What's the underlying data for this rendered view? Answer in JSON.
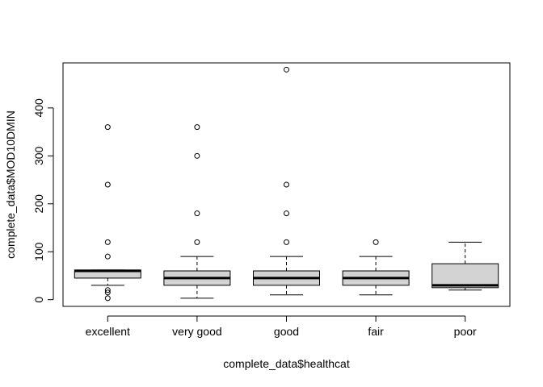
{
  "chart_data": {
    "type": "boxplot",
    "xlabel": "complete_data$healthcat",
    "ylabel": "complete_data$MOD10DMIN",
    "ylim": [
      -14,
      494
    ],
    "y_ticks": [
      0,
      100,
      200,
      300,
      400
    ],
    "x_ticks": [
      "excellent",
      "very good",
      "good",
      "fair",
      "poor"
    ],
    "box_fill": "#d3d3d3",
    "grid": false,
    "boxes": [
      {
        "category": "excellent",
        "whisker_low": 30,
        "q1": 45,
        "median": 60,
        "q3": 62,
        "whisker_high": 62,
        "outliers": [
          360,
          240,
          120,
          90,
          20,
          15,
          3
        ]
      },
      {
        "category": "very good",
        "whisker_low": 3,
        "q1": 30,
        "median": 45,
        "q3": 60,
        "whisker_high": 90,
        "outliers": [
          360,
          300,
          180,
          120
        ]
      },
      {
        "category": "good",
        "whisker_low": 10,
        "q1": 30,
        "median": 45,
        "q3": 60,
        "whisker_high": 90,
        "outliers": [
          480,
          240,
          180,
          120
        ]
      },
      {
        "category": "fair",
        "whisker_low": 10,
        "q1": 30,
        "median": 45,
        "q3": 60,
        "whisker_high": 90,
        "outliers": [
          120
        ]
      },
      {
        "category": "poor",
        "whisker_low": 20,
        "q1": 25,
        "median": 30,
        "q3": 75,
        "whisker_high": 120,
        "outliers": []
      }
    ]
  }
}
